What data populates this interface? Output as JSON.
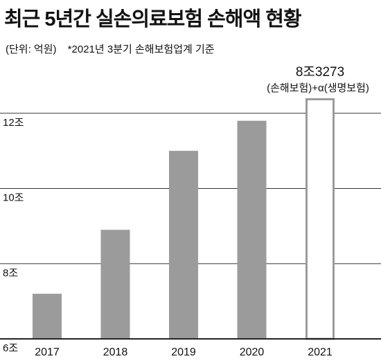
{
  "header": {
    "title": "최근 5년간 실손의료보험 손해액 현황",
    "unit_note": "(단위: 억원)",
    "source_note": "*2021년 3분기 손해보험업계 기준"
  },
  "colors": {
    "bar": "#9b9b9b",
    "highlight_stroke": "#9b9b9b",
    "grid": "#333333",
    "axis": "#222222"
  },
  "chart_data": {
    "type": "bar",
    "title": "최근 5년간 실손의료보험 손해액 현황",
    "unit": "억원",
    "categories": [
      "2017",
      "2018",
      "2019",
      "2020",
      "2021"
    ],
    "values": [
      7.2,
      8.9,
      11.0,
      11.8,
      12.4
    ],
    "value_unit_note": "values in 조 (trillion won), estimated from gridlines; 2021 bar is outline only",
    "ylim": [
      6,
      12.4
    ],
    "yticks": [
      {
        "value": 6,
        "label": "6조"
      },
      {
        "value": 8,
        "label": "8조"
      },
      {
        "value": 10,
        "label": "10조"
      },
      {
        "value": 12,
        "label": "12조"
      }
    ],
    "grid": true,
    "highlight": {
      "category": "2021",
      "style": "outline",
      "label": "8조3273",
      "note": "(손해보험)+α(생명보험)"
    }
  }
}
